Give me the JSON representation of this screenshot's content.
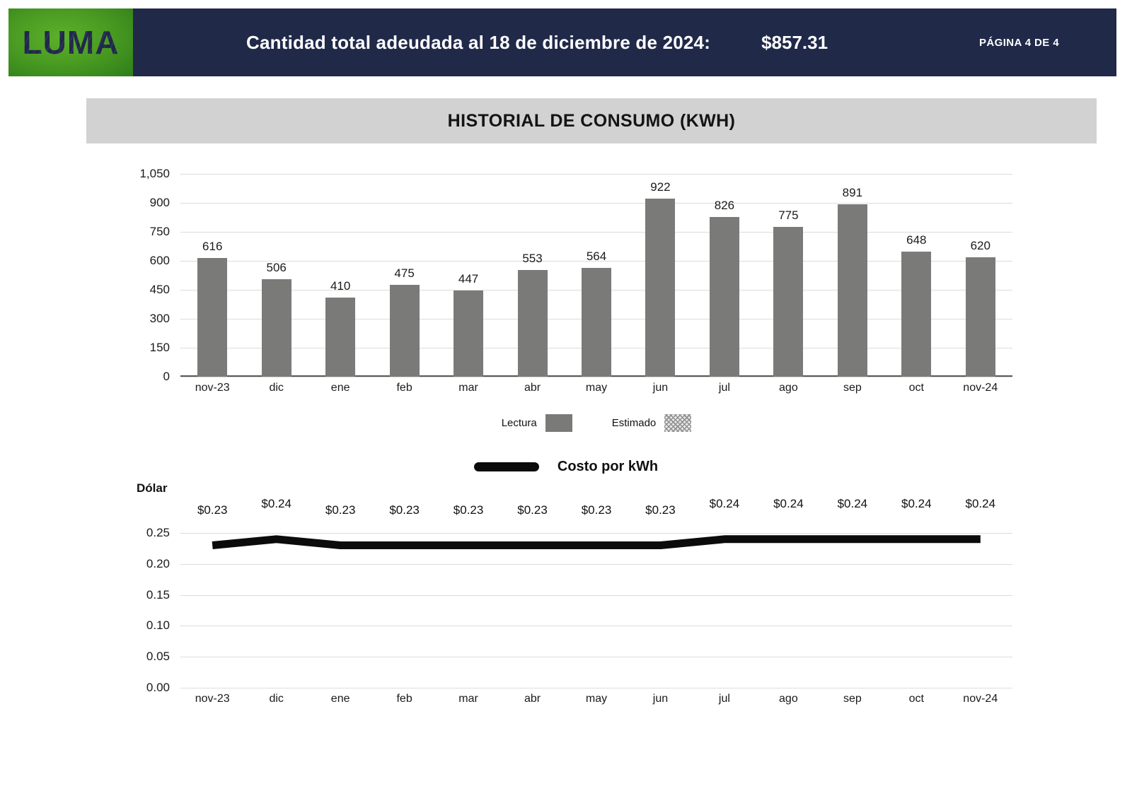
{
  "header": {
    "logo_text": "LUMA",
    "statement": "Cantidad total adeudada al 18 de diciembre de 2024:",
    "amount": "$857.31",
    "page_indicator": "PÁGINA 4 DE 4"
  },
  "section_title": "HISTORIAL DE CONSUMO (KWH)",
  "bar_legend": {
    "lectura": "Lectura",
    "estimado": "Estimado"
  },
  "line_legend": {
    "label": "Costo por kWh"
  },
  "line_axis_title": "Dólar",
  "colors": {
    "header_navy": "#212949",
    "logo_green_start": "#2F7D1A",
    "logo_green_end": "#5CB02A",
    "title_bar_gray": "#D2D2D3",
    "bar_fill": "#7A7A78",
    "gridline": "#DCDCDC",
    "axis_line": "#595959",
    "line_color": "#0B0B0B"
  },
  "chart_data": [
    {
      "type": "bar",
      "title": "HISTORIAL DE CONSUMO (KWH)",
      "categories": [
        "nov-23",
        "dic",
        "ene",
        "feb",
        "mar",
        "abr",
        "may",
        "jun",
        "jul",
        "ago",
        "sep",
        "oct",
        "nov-24"
      ],
      "values": [
        616,
        506,
        410,
        475,
        447,
        553,
        564,
        922,
        826,
        775,
        891,
        648,
        620
      ],
      "xlabel": "",
      "ylabel": "",
      "ylim": [
        0,
        1050
      ],
      "ytick_step": 150,
      "ytick_labels": [
        "1,050",
        "900",
        "750",
        "600",
        "450",
        "300",
        "150",
        "0"
      ],
      "grid": true,
      "legend": [
        "Lectura",
        "Estimado"
      ],
      "legend_position": "bottom"
    },
    {
      "type": "line",
      "title": "Costo por kWh",
      "categories": [
        "nov-23",
        "dic",
        "ene",
        "feb",
        "mar",
        "abr",
        "may",
        "jun",
        "jul",
        "ago",
        "sep",
        "oct",
        "nov-24"
      ],
      "values": [
        0.23,
        0.24,
        0.23,
        0.23,
        0.23,
        0.23,
        0.23,
        0.23,
        0.24,
        0.24,
        0.24,
        0.24,
        0.24
      ],
      "point_labels": [
        "$0.23",
        "$0.24",
        "$0.23",
        "$0.23",
        "$0.23",
        "$0.23",
        "$0.23",
        "$0.23",
        "$0.24",
        "$0.24",
        "$0.24",
        "$0.24",
        "$0.24"
      ],
      "xlabel": "",
      "ylabel": "Dólar",
      "ylim": [
        0,
        0.25
      ],
      "ytick_step": 0.05,
      "ytick_labels": [
        "0.25",
        "0.20",
        "0.15",
        "0.10",
        "0.05",
        "0.00"
      ],
      "grid": true,
      "legend_position": "top"
    }
  ]
}
